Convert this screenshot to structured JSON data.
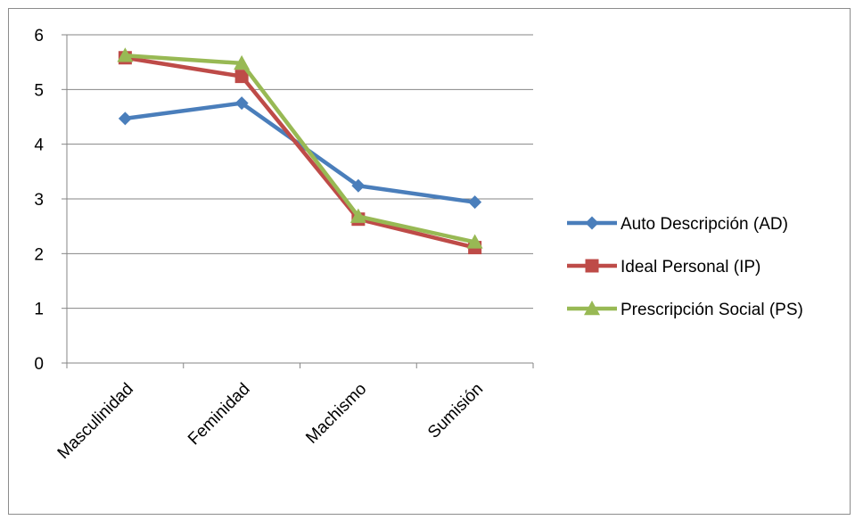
{
  "chart_data": {
    "type": "line",
    "categories": [
      "Masculinidad",
      "Feminidad",
      "Machismo",
      "Sumisión"
    ],
    "ylim": [
      0,
      6
    ],
    "yticks": [
      "0",
      "1",
      "2",
      "3",
      "4",
      "5",
      "6"
    ],
    "grid": true,
    "legend_position": "right",
    "series": [
      {
        "name": "Auto Descripción (AD)",
        "values": [
          4.47,
          4.75,
          3.24,
          2.94
        ],
        "color": "#4a7ebb",
        "marker": "diamond"
      },
      {
        "name": "Ideal Personal (IP)",
        "values": [
          5.58,
          5.24,
          2.63,
          2.11
        ],
        "color": "#be4b48",
        "marker": "square"
      },
      {
        "name": "Prescripción Social (PS)",
        "values": [
          5.62,
          5.48,
          2.68,
          2.21
        ],
        "color": "#98b954",
        "marker": "triangle"
      }
    ]
  }
}
